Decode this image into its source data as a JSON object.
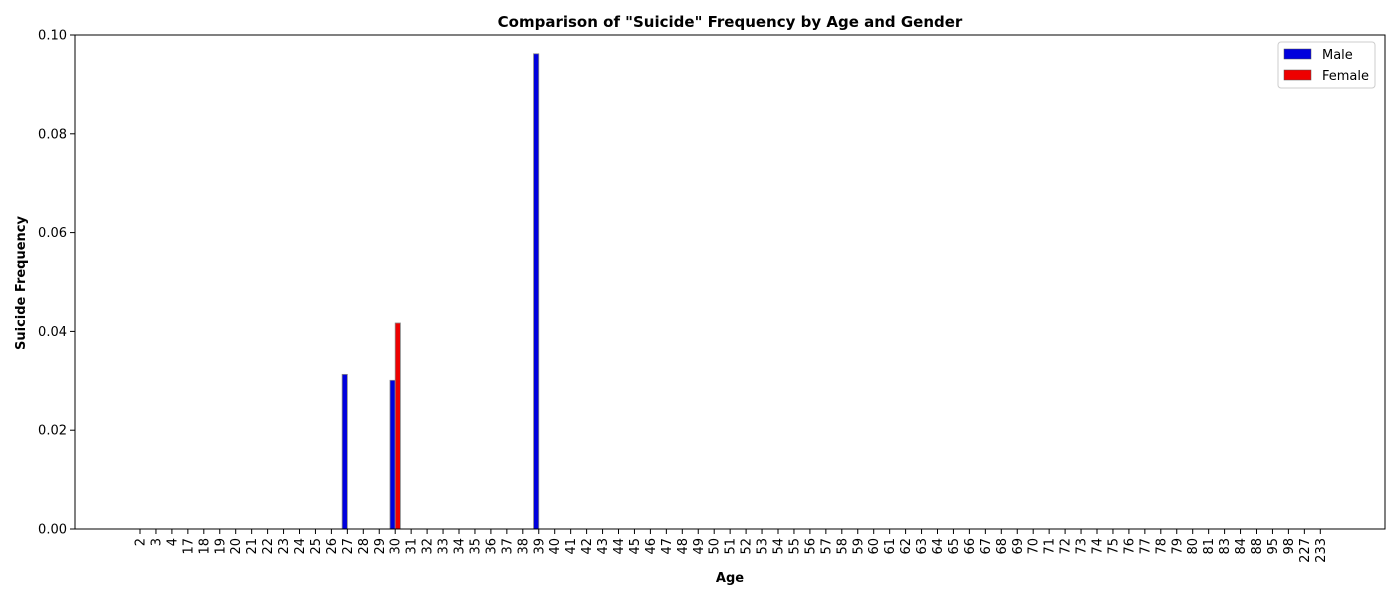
{
  "chart_data": {
    "type": "bar",
    "title": "Comparison of \"Suicide\" Frequency by Age and Gender",
    "xlabel": "Age",
    "ylabel": "Suicide Frequency",
    "ylim": [
      0,
      0.1
    ],
    "yticks": [
      "0.00",
      "0.02",
      "0.04",
      "0.06",
      "0.08",
      "0.10"
    ],
    "yticks_values": [
      0,
      0.02,
      0.04,
      0.06,
      0.08,
      0.1
    ],
    "legend_position": "top-right",
    "categories": [
      "2",
      "3",
      "4",
      "17",
      "18",
      "19",
      "20",
      "21",
      "22",
      "23",
      "24",
      "25",
      "26",
      "27",
      "28",
      "29",
      "30",
      "31",
      "32",
      "33",
      "34",
      "35",
      "36",
      "37",
      "38",
      "39",
      "40",
      "41",
      "42",
      "43",
      "44",
      "45",
      "46",
      "47",
      "48",
      "49",
      "50",
      "51",
      "52",
      "53",
      "54",
      "55",
      "56",
      "57",
      "58",
      "59",
      "60",
      "61",
      "62",
      "63",
      "64",
      "65",
      "66",
      "67",
      "68",
      "69",
      "70",
      "71",
      "72",
      "73",
      "74",
      "75",
      "76",
      "77",
      "78",
      "79",
      "80",
      "81",
      "83",
      "84",
      "88",
      "95",
      "98",
      "227",
      "233"
    ],
    "series": [
      {
        "name": "Male",
        "color": "#0000dd",
        "values": [
          0,
          0,
          0,
          0,
          0,
          0,
          0,
          0,
          0,
          0,
          0,
          0,
          0,
          0.0313,
          0,
          0,
          0.0301,
          0,
          0,
          0,
          0,
          0,
          0,
          0,
          0,
          0.0962,
          0,
          0,
          0,
          0,
          0,
          0,
          0,
          0,
          0,
          0,
          0,
          0,
          0,
          0,
          0,
          0,
          0,
          0,
          0,
          0,
          0,
          0,
          0,
          0,
          0,
          0,
          0,
          0,
          0,
          0,
          0,
          0,
          0,
          0,
          0,
          0,
          0,
          0,
          0,
          0,
          0,
          0,
          0,
          0,
          0,
          0,
          0,
          0,
          0
        ]
      },
      {
        "name": "Female",
        "color": "#ee0000",
        "values": [
          0,
          0,
          0,
          0,
          0,
          0,
          0,
          0,
          0,
          0,
          0,
          0,
          0,
          0,
          0,
          0,
          0.0417,
          0,
          0,
          0,
          0,
          0,
          0,
          0,
          0,
          0,
          0,
          0,
          0,
          0,
          0,
          0,
          0,
          0,
          0,
          0,
          0,
          0,
          0,
          0,
          0,
          0,
          0,
          0,
          0,
          0,
          0,
          0,
          0,
          0,
          0,
          0,
          0,
          0,
          0,
          0,
          0,
          0,
          0,
          0,
          0,
          0,
          0,
          0,
          0,
          0,
          0,
          0,
          0,
          0,
          0,
          0,
          0,
          0,
          0
        ]
      }
    ]
  }
}
